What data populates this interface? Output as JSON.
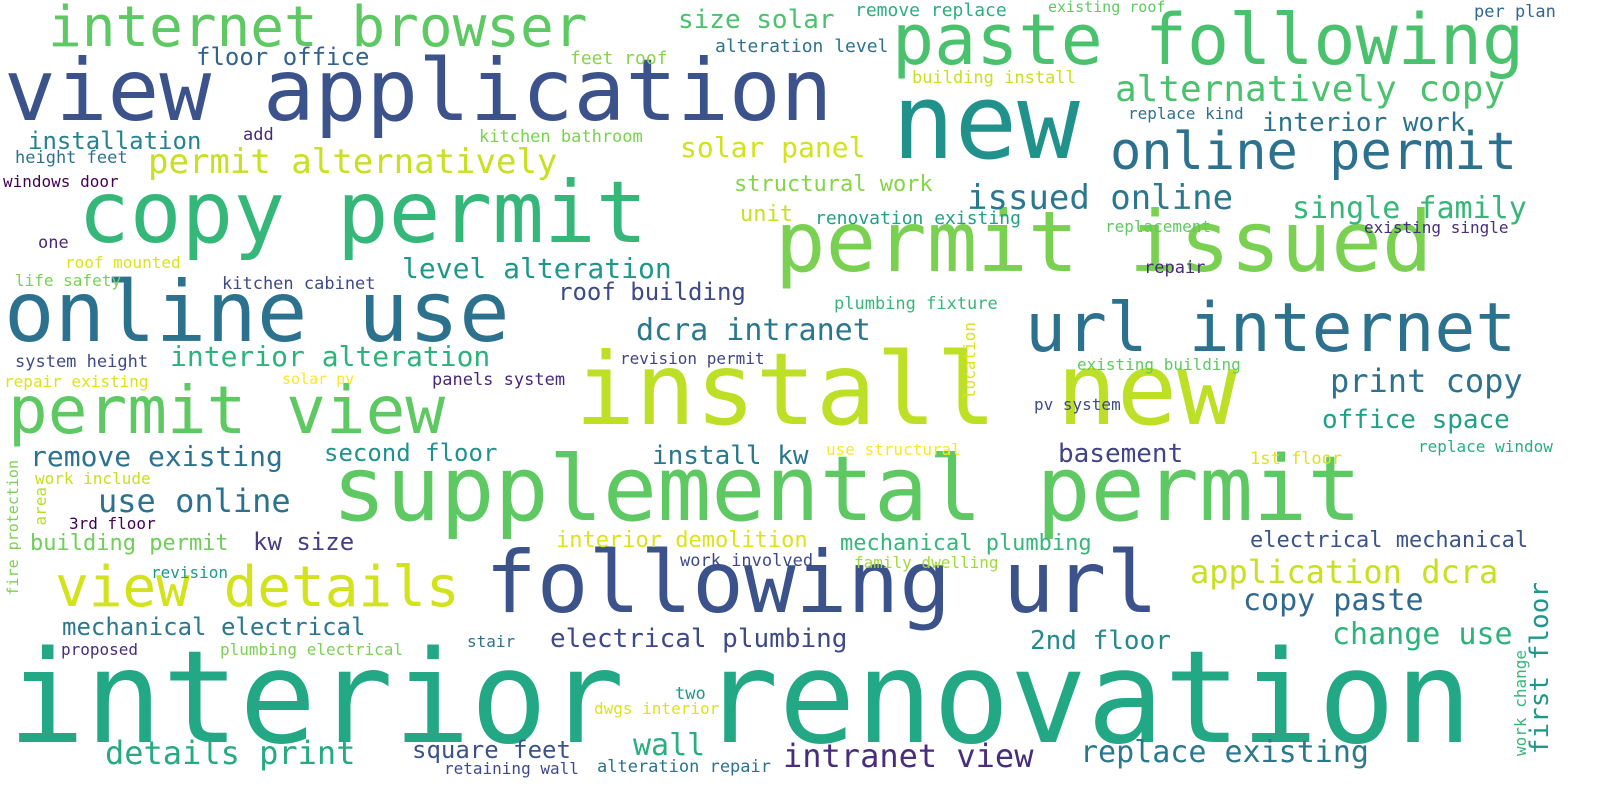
{
  "words": [
    {
      "text": "interior renovation",
      "color": "#22a884",
      "rotated": false
    },
    {
      "text": "install new",
      "color": "#bddf26",
      "rotated": false
    },
    {
      "text": "supplemental permit",
      "color": "#5ec962",
      "rotated": false
    },
    {
      "text": "view application",
      "color": "#3b528b",
      "rotated": false
    },
    {
      "text": "permit issued",
      "color": "#7ad151",
      "rotated": false
    },
    {
      "text": "new",
      "color": "#21918c",
      "rotated": false
    },
    {
      "text": "copy permit",
      "color": "#35b779",
      "rotated": false
    },
    {
      "text": "online use",
      "color": "#2c728e",
      "rotated": false
    },
    {
      "text": "following url",
      "color": "#3b528b",
      "rotated": false
    },
    {
      "text": "paste following",
      "color": "#4ac16d",
      "rotated": false
    },
    {
      "text": "url internet",
      "color": "#2c728e",
      "rotated": false
    },
    {
      "text": "permit view",
      "color": "#5ec962",
      "rotated": false
    },
    {
      "text": "internet browser",
      "color": "#5ec962",
      "rotated": false
    },
    {
      "text": "view details",
      "color": "#d2e21b",
      "rotated": false
    },
    {
      "text": "online permit",
      "color": "#2c728e",
      "rotated": false
    },
    {
      "text": "alternatively copy",
      "color": "#4ac16d",
      "rotated": false
    },
    {
      "text": "permit alternatively",
      "color": "#c8e020",
      "rotated": false
    },
    {
      "text": "issued online",
      "color": "#2a788e",
      "rotated": false
    },
    {
      "text": "single family",
      "color": "#35b779",
      "rotated": false
    },
    {
      "text": "interior work",
      "color": "#2c728e",
      "rotated": false
    },
    {
      "text": "solar panel",
      "color": "#d2e21b",
      "rotated": false
    },
    {
      "text": "floor office",
      "color": "#33638d",
      "rotated": false
    },
    {
      "text": "size solar",
      "color": "#4ac16d",
      "rotated": false
    },
    {
      "text": "installation",
      "color": "#26828e",
      "rotated": false
    },
    {
      "text": "level alteration",
      "color": "#1f988b",
      "rotated": false
    },
    {
      "text": "roof building",
      "color": "#3e4989",
      "rotated": false
    },
    {
      "text": "dcra intranet",
      "color": "#2a788e",
      "rotated": false
    },
    {
      "text": "interior alteration",
      "color": "#2db27d",
      "rotated": false
    },
    {
      "text": "print copy",
      "color": "#2c728e",
      "rotated": false
    },
    {
      "text": "office space",
      "color": "#1fa187",
      "rotated": false
    },
    {
      "text": "remove existing",
      "color": "#2c728e",
      "rotated": false
    },
    {
      "text": "second floor",
      "color": "#21918c",
      "rotated": false
    },
    {
      "text": "install kw",
      "color": "#2a788e",
      "rotated": false
    },
    {
      "text": "basement",
      "color": "#414487",
      "rotated": false
    },
    {
      "text": "use online",
      "color": "#2c728e",
      "rotated": false
    },
    {
      "text": "application dcra",
      "color": "#c8e020",
      "rotated": false
    },
    {
      "text": "copy paste",
      "color": "#31688e",
      "rotated": false
    },
    {
      "text": "electrical mechanical",
      "color": "#3b528b",
      "rotated": false
    },
    {
      "text": "mechanical plumbing",
      "color": "#35b779",
      "rotated": false
    },
    {
      "text": "building permit",
      "color": "#6ece58",
      "rotated": false
    },
    {
      "text": "kw size",
      "color": "#433e85",
      "rotated": false
    },
    {
      "text": "interior demolition",
      "color": "#dde318",
      "rotated": false
    },
    {
      "text": "mechanical electrical",
      "color": "#2a788e",
      "rotated": false
    },
    {
      "text": "electrical plumbing",
      "color": "#3e4989",
      "rotated": false
    },
    {
      "text": "2nd floor",
      "color": "#23898e",
      "rotated": false
    },
    {
      "text": "change use",
      "color": "#2db27d",
      "rotated": false
    },
    {
      "text": "details print",
      "color": "#25ab82",
      "rotated": false
    },
    {
      "text": "square feet",
      "color": "#3b528b",
      "rotated": false
    },
    {
      "text": "wall",
      "color": "#29af7f",
      "rotated": false
    },
    {
      "text": "intranet view",
      "color": "#472d7b",
      "rotated": false
    },
    {
      "text": "replace existing",
      "color": "#2a788e",
      "rotated": false
    },
    {
      "text": "first floor",
      "color": "#1f988b",
      "rotated": true
    },
    {
      "text": "structural work",
      "color": "#86d549",
      "rotated": false
    },
    {
      "text": "unit",
      "color": "#c8e020",
      "rotated": false
    },
    {
      "text": "renovation existing",
      "color": "#1fa187",
      "rotated": false
    },
    {
      "text": "remove replace",
      "color": "#29af7f",
      "rotated": false
    },
    {
      "text": "existing roof",
      "color": "#5ec962",
      "rotated": false
    },
    {
      "text": "per plan",
      "color": "#31688e",
      "rotated": false
    },
    {
      "text": "alteration level",
      "color": "#2c728e",
      "rotated": false
    },
    {
      "text": "feet roof",
      "color": "#86d549",
      "rotated": false
    },
    {
      "text": "building install",
      "color": "#c8e020",
      "rotated": false
    },
    {
      "text": "replace kind",
      "color": "#2c728e",
      "rotated": false
    },
    {
      "text": "kitchen bathroom",
      "color": "#7ad151",
      "rotated": false
    },
    {
      "text": "add",
      "color": "#482878",
      "rotated": false
    },
    {
      "text": "height feet",
      "color": "#2c728e",
      "rotated": false
    },
    {
      "text": "windows door",
      "color": "#440154",
      "rotated": false
    },
    {
      "text": "one",
      "color": "#482878",
      "rotated": false
    },
    {
      "text": "roof mounted",
      "color": "#dde318",
      "rotated": false
    },
    {
      "text": "life safety",
      "color": "#7ad151",
      "rotated": false
    },
    {
      "text": "kitchen cabinet",
      "color": "#3e4989",
      "rotated": false
    },
    {
      "text": "replacement",
      "color": "#5ec962",
      "rotated": false
    },
    {
      "text": "existing single",
      "color": "#472d7b",
      "rotated": false
    },
    {
      "text": "repair",
      "color": "#482878",
      "rotated": false
    },
    {
      "text": "plumbing fixture",
      "color": "#35b779",
      "rotated": false
    },
    {
      "text": "location",
      "color": "#dde318",
      "rotated": true
    },
    {
      "text": "revision permit",
      "color": "#414487",
      "rotated": false
    },
    {
      "text": "existing building",
      "color": "#5ec962",
      "rotated": false
    },
    {
      "text": "system height",
      "color": "#3e4989",
      "rotated": false
    },
    {
      "text": "repair existing",
      "color": "#dde318",
      "rotated": false
    },
    {
      "text": "solar pv",
      "color": "#fde725",
      "rotated": false
    },
    {
      "text": "panels system",
      "color": "#482878",
      "rotated": false
    },
    {
      "text": "pv system",
      "color": "#3e4989",
      "rotated": false
    },
    {
      "text": "use structural",
      "color": "#fde725",
      "rotated": false
    },
    {
      "text": "replace window",
      "color": "#29af7f",
      "rotated": false
    },
    {
      "text": "1st floor",
      "color": "#dde318",
      "rotated": false
    },
    {
      "text": "work include",
      "color": "#c8e020",
      "rotated": false
    },
    {
      "text": "3rd floor",
      "color": "#440154",
      "rotated": false
    },
    {
      "text": "fire protection",
      "color": "#7ad151",
      "rotated": true
    },
    {
      "text": "area",
      "color": "#b5de2b",
      "rotated": true
    },
    {
      "text": "revision",
      "color": "#1f988b",
      "rotated": false
    },
    {
      "text": "work involved",
      "color": "#3e4989",
      "rotated": false
    },
    {
      "text": "family dwelling",
      "color": "#a0da39",
      "rotated": false
    },
    {
      "text": "proposed",
      "color": "#472d7b",
      "rotated": false
    },
    {
      "text": "plumbing electrical",
      "color": "#7ad151",
      "rotated": false
    },
    {
      "text": "stair",
      "color": "#2c728e",
      "rotated": false
    },
    {
      "text": "two",
      "color": "#1f988b",
      "rotated": false
    },
    {
      "text": "dwgs interior",
      "color": "#dde318",
      "rotated": false
    },
    {
      "text": "work change",
      "color": "#35b779",
      "rotated": true
    },
    {
      "text": "retaining wall",
      "color": "#3e4989",
      "rotated": false
    },
    {
      "text": "alteration repair",
      "color": "#2c728e",
      "rotated": false
    }
  ]
}
